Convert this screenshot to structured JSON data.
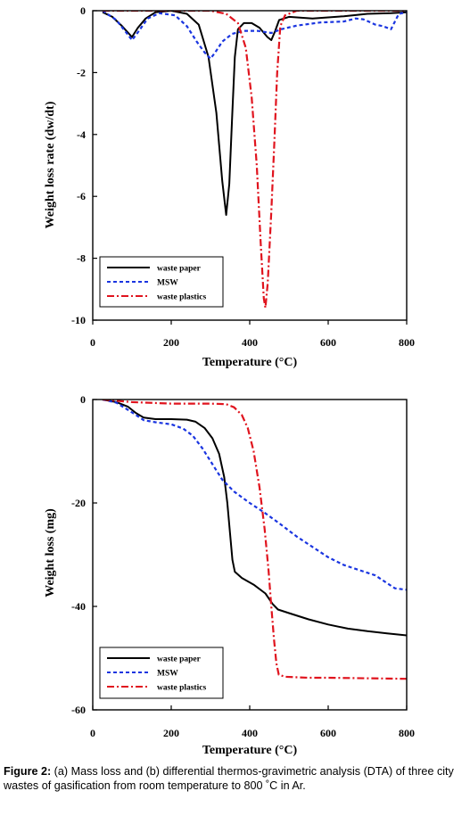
{
  "caption": {
    "label": "Figure 2:",
    "text": " (a) Mass loss and (b) differential thermos-gravimetric analysis (DTA) of three city wastes of gasification from room temperature to 800 ˚C in Ar."
  },
  "colors": {
    "waste_paper": "#000000",
    "msw": "#1a35e0",
    "waste_plastics": "#e0141e"
  },
  "chart_data": [
    {
      "type": "line",
      "title": "",
      "xlabel": "Temperature (°C)",
      "ylabel": "Weight loss rate (dw/dt)",
      "xlim": [
        0,
        800
      ],
      "ylim": [
        -10,
        0
      ],
      "xticks": [
        0,
        200,
        400,
        600,
        800
      ],
      "yticks": [
        0,
        -2,
        -4,
        -6,
        -8,
        -10
      ],
      "grid": false,
      "legend_position": "bottom-left",
      "series": [
        {
          "name": "waste paper",
          "style": "solid",
          "points": [
            [
              25,
              -0.05
            ],
            [
              50,
              -0.2
            ],
            [
              75,
              -0.5
            ],
            [
              100,
              -0.85
            ],
            [
              115,
              -0.55
            ],
            [
              135,
              -0.25
            ],
            [
              160,
              -0.05
            ],
            [
              200,
              0.0
            ],
            [
              240,
              -0.1
            ],
            [
              270,
              -0.45
            ],
            [
              295,
              -1.5
            ],
            [
              315,
              -3.3
            ],
            [
              330,
              -5.5
            ],
            [
              340,
              -6.6
            ],
            [
              348,
              -5.6
            ],
            [
              355,
              -3.5
            ],
            [
              362,
              -1.5
            ],
            [
              370,
              -0.6
            ],
            [
              385,
              -0.4
            ],
            [
              405,
              -0.4
            ],
            [
              425,
              -0.55
            ],
            [
              445,
              -0.85
            ],
            [
              455,
              -0.95
            ],
            [
              465,
              -0.65
            ],
            [
              475,
              -0.3
            ],
            [
              500,
              -0.2
            ],
            [
              560,
              -0.25
            ],
            [
              640,
              -0.18
            ],
            [
              700,
              -0.1
            ],
            [
              760,
              -0.08
            ],
            [
              800,
              -0.05
            ]
          ]
        },
        {
          "name": "MSW",
          "style": "dashed",
          "points": [
            [
              25,
              0.0
            ],
            [
              60,
              -0.3
            ],
            [
              85,
              -0.7
            ],
            [
              100,
              -0.95
            ],
            [
              115,
              -0.7
            ],
            [
              140,
              -0.25
            ],
            [
              170,
              -0.08
            ],
            [
              210,
              -0.15
            ],
            [
              240,
              -0.5
            ],
            [
              265,
              -1.0
            ],
            [
              285,
              -1.35
            ],
            [
              300,
              -1.55
            ],
            [
              312,
              -1.35
            ],
            [
              330,
              -1.0
            ],
            [
              355,
              -0.75
            ],
            [
              385,
              -0.65
            ],
            [
              420,
              -0.65
            ],
            [
              455,
              -0.72
            ],
            [
              480,
              -0.6
            ],
            [
              520,
              -0.48
            ],
            [
              580,
              -0.38
            ],
            [
              640,
              -0.35
            ],
            [
              670,
              -0.25
            ],
            [
              690,
              -0.28
            ],
            [
              720,
              -0.45
            ],
            [
              740,
              -0.5
            ],
            [
              760,
              -0.6
            ],
            [
              780,
              -0.1
            ],
            [
              800,
              -0.05
            ]
          ]
        },
        {
          "name": "waste plastics",
          "style": "dashdot",
          "points": [
            [
              25,
              0.0
            ],
            [
              100,
              0.0
            ],
            [
              200,
              0.0
            ],
            [
              300,
              0.0
            ],
            [
              340,
              -0.1
            ],
            [
              370,
              -0.4
            ],
            [
              390,
              -1.2
            ],
            [
              405,
              -2.8
            ],
            [
              418,
              -5.0
            ],
            [
              428,
              -7.5
            ],
            [
              436,
              -9.3
            ],
            [
              440,
              -9.6
            ],
            [
              446,
              -8.8
            ],
            [
              455,
              -6.5
            ],
            [
              463,
              -4.2
            ],
            [
              470,
              -2.0
            ],
            [
              478,
              -0.5
            ],
            [
              490,
              -0.15
            ],
            [
              520,
              0.0
            ],
            [
              600,
              0.0
            ],
            [
              700,
              0.0
            ],
            [
              800,
              0.0
            ]
          ]
        }
      ]
    },
    {
      "type": "line",
      "title": "",
      "xlabel": "Temperature (°C)",
      "ylabel": "Weight loss (mg)",
      "xlim": [
        0,
        800
      ],
      "ylim": [
        -60,
        0
      ],
      "xticks": [
        0,
        200,
        400,
        600,
        800
      ],
      "yticks": [
        0,
        -20,
        -40,
        -60
      ],
      "grid": false,
      "legend_position": "bottom-left",
      "series": [
        {
          "name": "waste paper",
          "style": "solid",
          "points": [
            [
              25,
              0.0
            ],
            [
              60,
              -0.5
            ],
            [
              90,
              -1.4
            ],
            [
              110,
              -2.6
            ],
            [
              130,
              -3.5
            ],
            [
              160,
              -3.8
            ],
            [
              200,
              -3.8
            ],
            [
              240,
              -3.9
            ],
            [
              262,
              -4.3
            ],
            [
              285,
              -5.5
            ],
            [
              305,
              -7.5
            ],
            [
              322,
              -10.5
            ],
            [
              335,
              -15.0
            ],
            [
              343,
              -20.0
            ],
            [
              350,
              -26.0
            ],
            [
              356,
              -31.0
            ],
            [
              362,
              -33.3
            ],
            [
              380,
              -34.5
            ],
            [
              410,
              -35.8
            ],
            [
              440,
              -37.5
            ],
            [
              458,
              -39.5
            ],
            [
              472,
              -40.6
            ],
            [
              500,
              -41.3
            ],
            [
              550,
              -42.5
            ],
            [
              600,
              -43.5
            ],
            [
              650,
              -44.3
            ],
            [
              700,
              -44.8
            ],
            [
              750,
              -45.2
            ],
            [
              800,
              -45.6
            ]
          ]
        },
        {
          "name": "MSW",
          "style": "dashed",
          "points": [
            [
              25,
              0.0
            ],
            [
              60,
              -0.6
            ],
            [
              100,
              -2.5
            ],
            [
              130,
              -4.0
            ],
            [
              160,
              -4.4
            ],
            [
              200,
              -4.8
            ],
            [
              230,
              -5.6
            ],
            [
              255,
              -7.0
            ],
            [
              280,
              -9.5
            ],
            [
              305,
              -12.5
            ],
            [
              330,
              -15.5
            ],
            [
              360,
              -17.8
            ],
            [
              400,
              -20.0
            ],
            [
              440,
              -22.0
            ],
            [
              480,
              -24.2
            ],
            [
              520,
              -26.5
            ],
            [
              560,
              -28.5
            ],
            [
              600,
              -30.5
            ],
            [
              640,
              -32.0
            ],
            [
              680,
              -33.0
            ],
            [
              720,
              -34.0
            ],
            [
              750,
              -35.5
            ],
            [
              770,
              -36.5
            ],
            [
              800,
              -36.8
            ]
          ]
        },
        {
          "name": "waste plastics",
          "style": "dashdot",
          "points": [
            [
              25,
              0.0
            ],
            [
              100,
              -0.5
            ],
            [
              200,
              -0.8
            ],
            [
              300,
              -0.8
            ],
            [
              340,
              -0.9
            ],
            [
              360,
              -1.5
            ],
            [
              380,
              -3.0
            ],
            [
              395,
              -5.5
            ],
            [
              410,
              -10.0
            ],
            [
              425,
              -17.0
            ],
            [
              438,
              -25.0
            ],
            [
              448,
              -33.0
            ],
            [
              455,
              -40.0
            ],
            [
              462,
              -46.5
            ],
            [
              468,
              -51.0
            ],
            [
              474,
              -53.2
            ],
            [
              490,
              -53.6
            ],
            [
              550,
              -53.8
            ],
            [
              600,
              -53.8
            ],
            [
              700,
              -53.9
            ],
            [
              800,
              -54.0
            ]
          ]
        }
      ]
    }
  ]
}
